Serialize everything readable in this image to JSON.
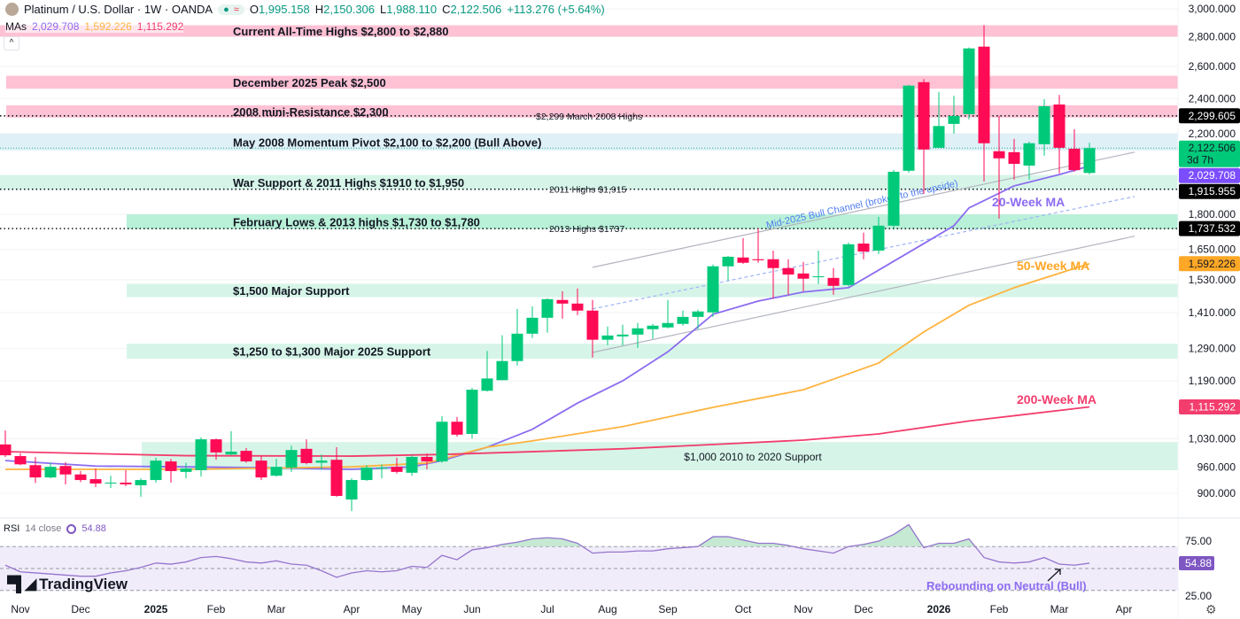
{
  "header": {
    "title": "Platinum / U.S. Dollar · 1W · OANDA",
    "o_label": "O",
    "o": "1,995.158",
    "h_label": "H",
    "h": "2,150.306",
    "l_label": "L",
    "l": "1,988.110",
    "c_label": "C",
    "c": "2,122.506",
    "change": "+113.276 (+5.64%)",
    "mas_label": "MAs",
    "ma20": "2,029.708",
    "ma50": "1,592.226",
    "ma200": "1,115.292",
    "collapse": "^"
  },
  "rsi_legend": {
    "label": "RSI",
    "params": "14 close",
    "value": "54.88"
  },
  "logo": "TradingView",
  "colors": {
    "up": "#00c97a",
    "down": "#ff0a54",
    "ma20": "#8c6cf0",
    "ma50": "#ffb33f",
    "ma200": "#f23d6d",
    "rsi": "#9575cd"
  },
  "chart_data": {
    "type": "candlestick",
    "symbol": "Platinum / U.S. Dollar",
    "interval": "1W",
    "y_scale": "log",
    "ylim": [
      880,
      3000
    ],
    "grid": true,
    "y_ticks": [
      {
        "value": 3000,
        "label": "3,000.000"
      },
      {
        "value": 2800,
        "label": "2,800.000"
      },
      {
        "value": 2600,
        "label": "2,600.000"
      },
      {
        "value": 2400,
        "label": "2,400.000"
      },
      {
        "value": 2200,
        "label": "2,200.000"
      },
      {
        "value": 1800,
        "label": "1,800.000"
      },
      {
        "value": 1650,
        "label": "1,650.000"
      },
      {
        "value": 1530,
        "label": "1,530.000"
      },
      {
        "value": 1410,
        "label": "1,410.000"
      },
      {
        "value": 1290,
        "label": "1,290.000"
      },
      {
        "value": 1190,
        "label": "1,190.000"
      },
      {
        "value": 1030,
        "label": "1,030.000"
      },
      {
        "value": 960,
        "label": "960.000"
      },
      {
        "value": 900,
        "label": "900.000"
      }
    ],
    "price_tags": [
      {
        "value": 2299.605,
        "label": "2,299.605",
        "bg": "#000000",
        "fg": "#ffffff"
      },
      {
        "value": 2122.506,
        "label": "2,122.506",
        "sub": "3d 7h",
        "bg": "#00c97a",
        "fg": "#131722"
      },
      {
        "value": 2029.708,
        "label": "2,029.708",
        "bg": "#7c4dff",
        "fg": "#ffffff"
      },
      {
        "value": 1915.955,
        "label": "1,915.955",
        "bg": "#000000",
        "fg": "#ffffff"
      },
      {
        "value": 1737.532,
        "label": "1,737.532",
        "bg": "#000000",
        "fg": "#ffffff"
      },
      {
        "value": 1592.226,
        "label": "1,592.226",
        "bg": "#ffa726",
        "fg": "#131722"
      },
      {
        "value": 1115.292,
        "label": "1,115.292",
        "bg": "#f23d6d",
        "fg": "#ffffff"
      }
    ],
    "x_ticks": [
      {
        "label": "Nov",
        "date": "2024-11-04"
      },
      {
        "label": "Dec",
        "date": "2024-12-02"
      },
      {
        "label": "2025",
        "date": "2025-01-06",
        "bold": true
      },
      {
        "label": "Feb",
        "date": "2025-02-03"
      },
      {
        "label": "Mar",
        "date": "2025-03-03"
      },
      {
        "label": "Apr",
        "date": "2025-04-07"
      },
      {
        "label": "May",
        "date": "2025-05-05"
      },
      {
        "label": "Jun",
        "date": "2025-06-02"
      },
      {
        "label": "Jul",
        "date": "2025-07-07"
      },
      {
        "label": "Aug",
        "date": "2025-08-04"
      },
      {
        "label": "Sep",
        "date": "2025-09-01"
      },
      {
        "label": "Oct",
        "date": "2025-10-06"
      },
      {
        "label": "Nov",
        "date": "2025-11-03"
      },
      {
        "label": "Dec",
        "date": "2025-12-01"
      },
      {
        "label": "2026",
        "date": "2026-01-05",
        "bold": true
      },
      {
        "label": "Feb",
        "date": "2026-02-02"
      },
      {
        "label": "Mar",
        "date": "2026-03-02"
      },
      {
        "label": "Apr",
        "date": "2026-04-06"
      }
    ],
    "candles_columns": [
      "date",
      "open",
      "high",
      "low",
      "close"
    ],
    "candles": [
      [
        "2024-10-28",
        1016,
        1052,
        985,
        989
      ],
      [
        "2024-11-04",
        987,
        994,
        965,
        967
      ],
      [
        "2024-11-11",
        965,
        985,
        923,
        936
      ],
      [
        "2024-11-18",
        936,
        971,
        934,
        961
      ],
      [
        "2024-11-25",
        963,
        972,
        920,
        943
      ],
      [
        "2024-12-02",
        943,
        951,
        925,
        930
      ],
      [
        "2024-12-09",
        932,
        957,
        914,
        922
      ],
      [
        "2024-12-16",
        922,
        940,
        912,
        924
      ],
      [
        "2024-12-23",
        924,
        953,
        916,
        920
      ],
      [
        "2024-12-30",
        918,
        934,
        892,
        930
      ],
      [
        "2025-01-06",
        930,
        983,
        924,
        976
      ],
      [
        "2025-01-13",
        974,
        980,
        924,
        951
      ],
      [
        "2025-01-20",
        949,
        971,
        934,
        957
      ],
      [
        "2025-01-27",
        953,
        1034,
        938,
        1029
      ],
      [
        "2025-02-03",
        1029,
        1031,
        978,
        996
      ],
      [
        "2025-02-10",
        991,
        1050,
        989,
        998
      ],
      [
        "2025-02-17",
        1000,
        1007,
        971,
        974
      ],
      [
        "2025-02-24",
        976,
        987,
        930,
        936
      ],
      [
        "2025-03-03",
        940,
        980,
        938,
        961
      ],
      [
        "2025-03-10",
        959,
        1013,
        949,
        1002
      ],
      [
        "2025-03-17",
        1005,
        1029,
        967,
        970
      ],
      [
        "2025-03-24",
        971,
        991,
        955,
        976
      ],
      [
        "2025-03-31",
        978,
        1009,
        892,
        894
      ],
      [
        "2025-04-07",
        886,
        934,
        861,
        930
      ],
      [
        "2025-04-14",
        930,
        965,
        928,
        959
      ],
      [
        "2025-04-21",
        957,
        967,
        934,
        959
      ],
      [
        "2025-04-28",
        961,
        983,
        945,
        949
      ],
      [
        "2025-05-05",
        947,
        989,
        940,
        985
      ],
      [
        "2025-05-12",
        985,
        993,
        955,
        974
      ],
      [
        "2025-05-19",
        974,
        1090,
        971,
        1075
      ],
      [
        "2025-05-26",
        1075,
        1088,
        1036,
        1041
      ],
      [
        "2025-06-02",
        1043,
        1169,
        1031,
        1164
      ],
      [
        "2025-06-09",
        1161,
        1282,
        1159,
        1197
      ],
      [
        "2025-06-16",
        1192,
        1333,
        1192,
        1250
      ],
      [
        "2025-06-23",
        1250,
        1423,
        1236,
        1338
      ],
      [
        "2025-06-30",
        1338,
        1432,
        1324,
        1392
      ],
      [
        "2025-07-07",
        1392,
        1461,
        1341,
        1458
      ],
      [
        "2025-07-14",
        1455,
        1487,
        1389,
        1442
      ],
      [
        "2025-07-21",
        1442,
        1497,
        1401,
        1417
      ],
      [
        "2025-07-28",
        1417,
        1455,
        1261,
        1318
      ],
      [
        "2025-08-04",
        1318,
        1362,
        1300,
        1332
      ],
      [
        "2025-08-11",
        1329,
        1368,
        1300,
        1335
      ],
      [
        "2025-08-18",
        1335,
        1374,
        1292,
        1356
      ],
      [
        "2025-08-25",
        1353,
        1371,
        1321,
        1365
      ],
      [
        "2025-09-01",
        1359,
        1455,
        1356,
        1374
      ],
      [
        "2025-09-08",
        1371,
        1417,
        1365,
        1395
      ],
      [
        "2025-09-15",
        1395,
        1420,
        1353,
        1414
      ],
      [
        "2025-09-22",
        1411,
        1589,
        1395,
        1582
      ],
      [
        "2025-09-29",
        1582,
        1624,
        1527,
        1620
      ],
      [
        "2025-10-06",
        1617,
        1697,
        1592,
        1596
      ],
      [
        "2025-10-13",
        1610,
        1739,
        1596,
        1606
      ],
      [
        "2025-10-20",
        1610,
        1645,
        1461,
        1575
      ],
      [
        "2025-10-27",
        1575,
        1610,
        1474,
        1550
      ],
      [
        "2025-11-03",
        1554,
        1599,
        1487,
        1534
      ],
      [
        "2025-11-10",
        1540,
        1645,
        1514,
        1543
      ],
      [
        "2025-11-17",
        1537,
        1575,
        1474,
        1507
      ],
      [
        "2025-11-24",
        1510,
        1678,
        1504,
        1671
      ],
      [
        "2025-12-01",
        1674,
        1720,
        1610,
        1641
      ],
      [
        "2025-12-08",
        1645,
        1789,
        1631,
        1750
      ],
      [
        "2025-12-15",
        1750,
        2010,
        1739,
        2001
      ],
      [
        "2025-12-22",
        2006,
        2484,
        1997,
        2479
      ],
      [
        "2025-12-29",
        2500,
        2519,
        1894,
        2115
      ],
      [
        "2026-01-05",
        2124,
        2439,
        2124,
        2242
      ],
      [
        "2026-01-12",
        2254,
        2417,
        2200,
        2299
      ],
      [
        "2026-01-19",
        2309,
        2725,
        2279,
        2719
      ],
      [
        "2026-01-26",
        2731,
        2881,
        1953,
        2148
      ],
      [
        "2026-02-02",
        2106,
        2299,
        1781,
        2069
      ],
      [
        "2026-02-09",
        2101,
        2171,
        1962,
        2041
      ],
      [
        "2026-02-16",
        2032,
        2157,
        1962,
        2148
      ],
      [
        "2026-02-23",
        2143,
        2396,
        2083,
        2355
      ],
      [
        "2026-03-02",
        2365,
        2422,
        1993,
        2124
      ],
      [
        "2026-03-09",
        2119,
        2224,
        2001,
        2009.23
      ],
      [
        "2026-03-16",
        1995.158,
        2150.306,
        1988.11,
        2122.506
      ]
    ],
    "moving_averages": [
      {
        "name": "20-Week MA",
        "color": "#8c6cf0",
        "points": [
          [
            "2024-10-28",
            976
          ],
          [
            "2024-12-09",
            963
          ],
          [
            "2025-01-20",
            961
          ],
          [
            "2025-02-24",
            959
          ],
          [
            "2025-04-07",
            955
          ],
          [
            "2025-05-05",
            961
          ],
          [
            "2025-05-19",
            976
          ],
          [
            "2025-06-09",
            1009
          ],
          [
            "2025-06-30",
            1055
          ],
          [
            "2025-07-21",
            1126
          ],
          [
            "2025-08-11",
            1190
          ],
          [
            "2025-09-01",
            1279
          ],
          [
            "2025-09-22",
            1404
          ],
          [
            "2025-10-13",
            1451
          ],
          [
            "2025-11-03",
            1484
          ],
          [
            "2025-11-24",
            1500
          ],
          [
            "2025-12-08",
            1567
          ],
          [
            "2025-12-29",
            1674
          ],
          [
            "2026-01-12",
            1750
          ],
          [
            "2026-01-19",
            1829
          ],
          [
            "2026-02-09",
            1932
          ],
          [
            "2026-03-02",
            1987
          ],
          [
            "2026-03-16",
            2029.708
          ]
        ]
      },
      {
        "name": "50-Week MA",
        "color": "#ffb33f",
        "points": [
          [
            "2024-10-28",
            955
          ],
          [
            "2025-01-20",
            955
          ],
          [
            "2025-04-07",
            961
          ],
          [
            "2025-05-12",
            970
          ],
          [
            "2025-06-09",
            1009
          ],
          [
            "2025-06-30",
            1025
          ],
          [
            "2025-08-11",
            1062
          ],
          [
            "2025-09-22",
            1114
          ],
          [
            "2025-11-03",
            1164
          ],
          [
            "2025-11-17",
            1195
          ],
          [
            "2025-12-08",
            1244
          ],
          [
            "2025-12-29",
            1344
          ],
          [
            "2026-01-19",
            1436
          ],
          [
            "2026-02-09",
            1500
          ],
          [
            "2026-03-16",
            1592.226
          ]
        ]
      },
      {
        "name": "200-Week MA",
        "color": "#f23d6d",
        "points": [
          [
            "2024-10-28",
            998
          ],
          [
            "2025-01-20",
            988
          ],
          [
            "2025-04-07",
            987
          ],
          [
            "2025-05-19",
            991
          ],
          [
            "2025-08-11",
            1005
          ],
          [
            "2025-11-03",
            1027
          ],
          [
            "2025-12-08",
            1043
          ],
          [
            "2026-01-19",
            1077
          ],
          [
            "2026-03-16",
            1115.292
          ]
        ]
      }
    ],
    "zones": [
      {
        "label": "Current All-Time Highs $2,800 to $2,880",
        "low": 2800,
        "high": 2880,
        "color": "#ffc1d4",
        "from": null
      },
      {
        "label": "December 2025 Peak $2,500",
        "low": 2460,
        "high": 2540,
        "color": "#ffc1d4",
        "from": null
      },
      {
        "label": "2008 mini-Resistance $2,300",
        "low": 2290,
        "high": 2360,
        "color": "#ffc1d4",
        "from": null
      },
      {
        "label": "May 2008 Momentum Pivot $2,100 to $2,200 (Bull Above)",
        "low": 2110,
        "high": 2200,
        "color": "#dff0f7",
        "from": null
      },
      {
        "label": "War Support & 2011 Highs $1910 to $1,950",
        "low": 1915,
        "high": 1985,
        "color": "#d6f5e8",
        "from": null
      },
      {
        "label": "February Lows & 2013 highs $1,730 to $1,780",
        "low": 1735,
        "high": 1800,
        "color": "#b8f0d8",
        "from": "2024-12-30"
      },
      {
        "label": "$1,500 Major Support",
        "low": 1465,
        "high": 1515,
        "color": "#d6f5e8",
        "from": "2024-12-30"
      },
      {
        "label": "$1,250 to $1,300 Major 2025 Support",
        "low": 1257,
        "high": 1305,
        "color": "#d6f5e8",
        "from": "2024-12-30"
      },
      {
        "label": "$1,000 2010 to 2020 Support",
        "low": 953,
        "high": 1022,
        "color": "#d6f5e8",
        "from": "2025-01-06",
        "centered": true
      }
    ],
    "levels": [
      {
        "value": 2299.605,
        "label": "$2,299 March 2008 Highs",
        "color": "#131722"
      },
      {
        "value": 1915.955,
        "label": "2011 Highs $1,915",
        "color": "#131722"
      },
      {
        "value": 1737.532,
        "label": "2013 Highs $1737",
        "color": "#131722"
      },
      {
        "value": 2122.506,
        "label": "",
        "color": "#22ab94"
      }
    ],
    "channel": {
      "label": "Mid-2025 Bull Channel (broken to the upside)",
      "upper": [
        [
          "2025-07-28",
          1578
        ],
        [
          "2026-04-06",
          2101
        ]
      ],
      "middle": [
        [
          "2025-07-28",
          1423
        ],
        [
          "2026-04-06",
          1882
        ]
      ],
      "lower": [
        [
          "2025-07-28",
          1277
        ],
        [
          "2026-04-06",
          1705
        ]
      ]
    },
    "annotations": [
      {
        "text": "20-Week MA",
        "color": "#8c6cf0"
      },
      {
        "text": "50-Week MA",
        "color": "#ffa726"
      },
      {
        "text": "200-Week MA",
        "color": "#f23d6d"
      }
    ],
    "rsi": {
      "period": 14,
      "levels": [
        70,
        50,
        30
      ],
      "y_ticks": [
        {
          "value": 75,
          "label": "75.00"
        },
        {
          "value": 25,
          "label": "25.00"
        }
      ],
      "last_label": "54.88",
      "annotation": "Rebounding on Neutral (Bull)",
      "values": [
        53,
        47,
        46,
        45,
        44,
        43,
        43,
        46,
        48,
        51,
        55,
        54,
        56,
        60,
        61,
        59,
        56,
        55,
        57,
        54,
        53,
        48,
        42,
        46,
        48,
        47,
        48,
        52,
        51,
        62,
        58,
        67,
        69,
        72,
        74,
        77,
        78,
        77,
        73,
        64,
        65,
        65,
        66,
        66,
        68,
        69,
        70,
        79,
        79,
        76,
        73,
        73,
        71,
        68,
        66,
        64,
        70,
        72,
        75,
        81,
        90,
        69,
        73,
        73,
        77,
        60,
        56,
        55,
        56,
        60,
        54,
        53,
        54.88
      ]
    }
  }
}
